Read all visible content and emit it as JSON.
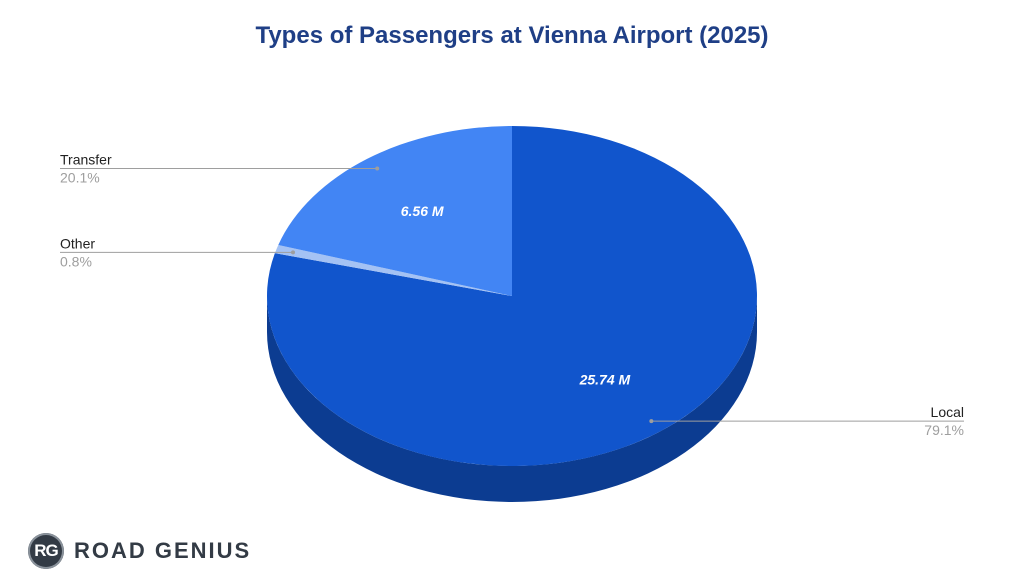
{
  "chart_data": {
    "type": "pie",
    "title": "Types of Passengers at Vienna Airport (2025)",
    "slices": [
      {
        "label": "Local",
        "value": 25.74,
        "value_label": "25.74 M",
        "percent_label": "79.1%",
        "color": "#1155cc",
        "side_color": "#0c3c91"
      },
      {
        "label": "Other",
        "value": 0.26,
        "value_label": "",
        "percent_label": "0.8%",
        "color": "#a4c2f4",
        "side_color": "#7d99c8"
      },
      {
        "label": "Transfer",
        "value": 6.56,
        "value_label": "6.56 M",
        "percent_label": "20.1%",
        "color": "#4285f4",
        "side_color": "#2d62bf"
      }
    ],
    "style": "3d",
    "legend": "leader-line labels"
  },
  "brand": {
    "logo_initials": "RG",
    "name": "ROAD GENIUS"
  },
  "colors": {
    "title": "#1f3f86",
    "label": "#222222",
    "percent": "#9e9e9e",
    "leader_line": "#9e9e9e"
  }
}
